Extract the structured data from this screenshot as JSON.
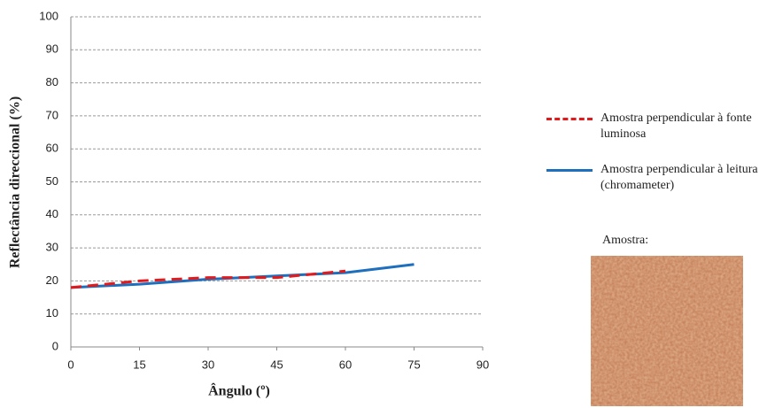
{
  "chart_data": {
    "type": "line",
    "x_label": "Ângulo (º)",
    "y_label": "Reflectância direccional (%)",
    "x": [
      0,
      15,
      30,
      45,
      60,
      75
    ],
    "series": [
      {
        "name": "Amostra perpendicular à fonte luminosa",
        "color": "#e31a1c",
        "dash": true,
        "values": [
          18,
          20,
          21,
          21,
          23,
          null
        ]
      },
      {
        "name": "Amostra perpendicular à leitura (chromameter)",
        "color": "#1f6fbf",
        "dash": false,
        "values": [
          18,
          19,
          20.5,
          21.5,
          22.5,
          25
        ]
      }
    ],
    "xlim": [
      0,
      90
    ],
    "xticks": [
      0,
      15,
      30,
      45,
      60,
      75,
      90
    ],
    "ylim": [
      0,
      100
    ],
    "yticks": [
      0,
      10,
      20,
      30,
      40,
      50,
      60,
      70,
      80,
      90,
      100
    ],
    "grid": true,
    "legend": "right",
    "inset_label": "Amostra:"
  }
}
